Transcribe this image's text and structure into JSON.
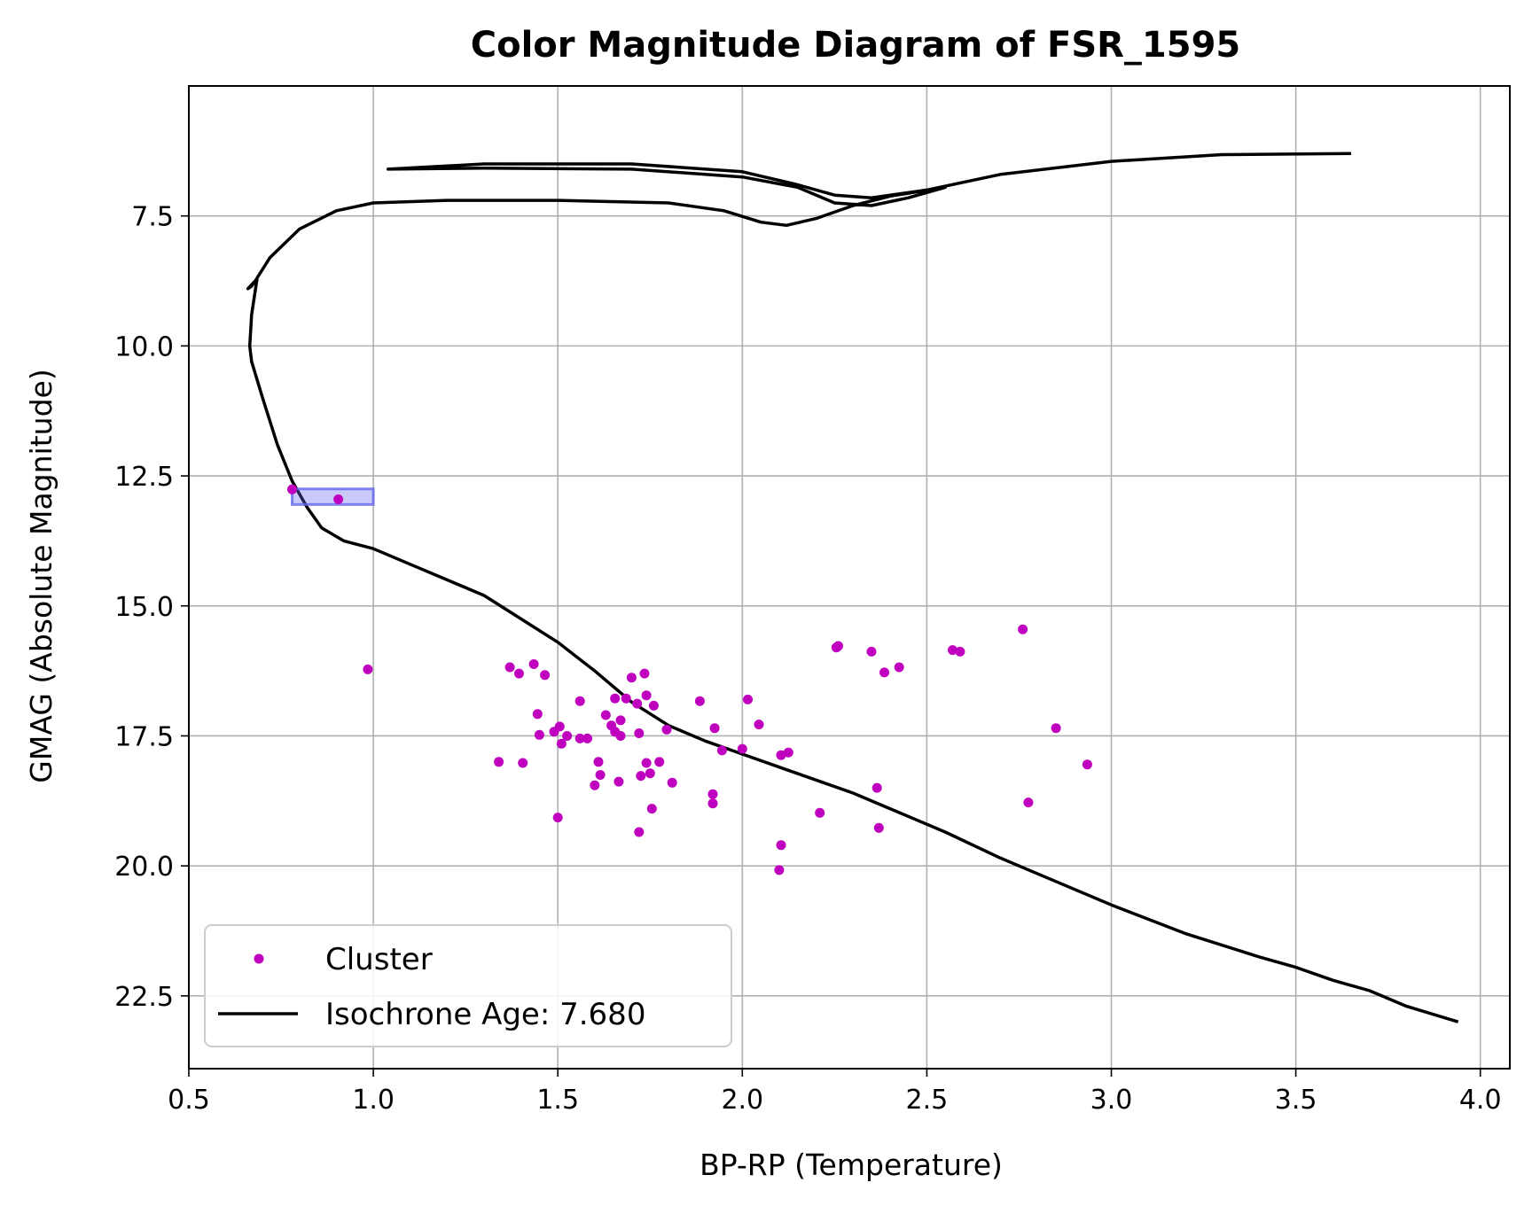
{
  "chart_data": {
    "type": "scatter",
    "title": "Color Magnitude Diagram of FSR_1595",
    "xlabel": "BP-RP (Temperature)",
    "ylabel": "GMAG (Absolute Magnitude)",
    "xlim": [
      0.5,
      4.08
    ],
    "ylim": [
      23.9,
      5.0
    ],
    "y_inverted": true,
    "grid": true,
    "legend_position": "lower-left",
    "x_ticks": [
      "0.5",
      "1.0",
      "1.5",
      "2.0",
      "2.5",
      "3.0",
      "3.5",
      "4.0"
    ],
    "y_ticks": [
      "7.5",
      "10.0",
      "12.5",
      "15.0",
      "17.5",
      "20.0",
      "22.5"
    ],
    "series": [
      {
        "name": "Cluster",
        "kind": "scatter",
        "color": "#bf00bf",
        "points": [
          [
            0.78,
            12.76
          ],
          [
            0.905,
            12.95
          ],
          [
            0.985,
            16.22
          ],
          [
            1.34,
            18.0
          ],
          [
            1.37,
            16.18
          ],
          [
            1.395,
            16.3
          ],
          [
            1.405,
            18.02
          ],
          [
            1.435,
            16.12
          ],
          [
            1.465,
            16.33
          ],
          [
            1.445,
            17.08
          ],
          [
            1.45,
            17.48
          ],
          [
            1.49,
            17.42
          ],
          [
            1.505,
            17.32
          ],
          [
            1.51,
            17.65
          ],
          [
            1.525,
            17.5
          ],
          [
            1.5,
            19.07
          ],
          [
            1.56,
            16.83
          ],
          [
            1.56,
            17.55
          ],
          [
            1.58,
            17.55
          ],
          [
            1.6,
            18.45
          ],
          [
            1.61,
            18.0
          ],
          [
            1.615,
            18.25
          ],
          [
            1.63,
            17.1
          ],
          [
            1.645,
            17.3
          ],
          [
            1.655,
            16.78
          ],
          [
            1.655,
            17.42
          ],
          [
            1.665,
            18.38
          ],
          [
            1.67,
            17.2
          ],
          [
            1.67,
            17.5
          ],
          [
            1.685,
            16.78
          ],
          [
            1.7,
            16.38
          ],
          [
            1.715,
            16.88
          ],
          [
            1.72,
            17.45
          ],
          [
            1.72,
            19.35
          ],
          [
            1.725,
            18.27
          ],
          [
            1.735,
            16.3
          ],
          [
            1.74,
            16.72
          ],
          [
            1.74,
            18.02
          ],
          [
            1.75,
            18.22
          ],
          [
            1.755,
            18.9
          ],
          [
            1.76,
            16.92
          ],
          [
            1.775,
            18.0
          ],
          [
            1.795,
            17.38
          ],
          [
            1.81,
            18.4
          ],
          [
            1.885,
            16.83
          ],
          [
            1.92,
            18.62
          ],
          [
            1.92,
            18.8
          ],
          [
            1.925,
            17.35
          ],
          [
            1.945,
            17.78
          ],
          [
            2.0,
            17.75
          ],
          [
            2.015,
            16.8
          ],
          [
            2.045,
            17.28
          ],
          [
            2.105,
            17.87
          ],
          [
            2.105,
            19.6
          ],
          [
            2.1,
            20.08
          ],
          [
            2.125,
            17.82
          ],
          [
            2.21,
            18.98
          ],
          [
            2.255,
            15.8
          ],
          [
            2.26,
            15.77
          ],
          [
            2.35,
            15.88
          ],
          [
            2.365,
            18.5
          ],
          [
            2.37,
            19.27
          ],
          [
            2.385,
            16.28
          ],
          [
            2.425,
            16.18
          ],
          [
            2.57,
            15.85
          ],
          [
            2.59,
            15.88
          ],
          [
            2.76,
            15.45
          ],
          [
            2.775,
            18.78
          ],
          [
            2.85,
            17.35
          ],
          [
            2.935,
            18.05
          ]
        ]
      },
      {
        "name": "Isochrone Age: 7.680",
        "kind": "line",
        "color": "#000000",
        "points": [
          [
            3.65,
            6.3
          ],
          [
            3.3,
            6.32
          ],
          [
            3.0,
            6.45
          ],
          [
            2.7,
            6.7
          ],
          [
            2.5,
            7.0
          ],
          [
            2.45,
            7.05
          ],
          [
            2.35,
            7.15
          ],
          [
            2.25,
            7.1
          ],
          [
            2.15,
            6.9
          ],
          [
            2.0,
            6.65
          ],
          [
            1.7,
            6.5
          ],
          [
            1.3,
            6.5
          ],
          [
            1.04,
            6.6
          ],
          [
            1.3,
            6.58
          ],
          [
            1.7,
            6.6
          ],
          [
            2.0,
            6.75
          ],
          [
            2.15,
            6.95
          ],
          [
            2.25,
            7.25
          ],
          [
            2.35,
            7.3
          ],
          [
            2.45,
            7.15
          ],
          [
            2.55,
            6.95
          ],
          [
            2.4,
            7.12
          ],
          [
            2.3,
            7.3
          ],
          [
            2.2,
            7.55
          ],
          [
            2.12,
            7.68
          ],
          [
            2.05,
            7.62
          ],
          [
            1.95,
            7.4
          ],
          [
            1.8,
            7.25
          ],
          [
            1.5,
            7.2
          ],
          [
            1.2,
            7.2
          ],
          [
            1.0,
            7.25
          ],
          [
            0.9,
            7.4
          ],
          [
            0.8,
            7.75
          ],
          [
            0.72,
            8.3
          ],
          [
            0.68,
            8.75
          ],
          [
            0.66,
            8.9
          ],
          [
            0.67,
            8.85
          ],
          [
            0.685,
            8.7
          ],
          [
            0.67,
            9.4
          ],
          [
            0.665,
            10.0
          ],
          [
            0.67,
            10.3
          ],
          [
            0.7,
            11.0
          ],
          [
            0.74,
            11.9
          ],
          [
            0.78,
            12.6
          ],
          [
            0.82,
            13.1
          ],
          [
            0.86,
            13.5
          ],
          [
            0.92,
            13.75
          ],
          [
            1.0,
            13.9
          ],
          [
            1.1,
            14.2
          ],
          [
            1.2,
            14.5
          ],
          [
            1.3,
            14.8
          ],
          [
            1.4,
            15.25
          ],
          [
            1.5,
            15.7
          ],
          [
            1.6,
            16.25
          ],
          [
            1.7,
            16.85
          ],
          [
            1.8,
            17.3
          ],
          [
            1.9,
            17.6
          ],
          [
            2.0,
            17.85
          ],
          [
            2.1,
            18.1
          ],
          [
            2.2,
            18.35
          ],
          [
            2.3,
            18.6
          ],
          [
            2.4,
            18.9
          ],
          [
            2.55,
            19.35
          ],
          [
            2.7,
            19.85
          ],
          [
            2.85,
            20.3
          ],
          [
            3.0,
            20.75
          ],
          [
            3.2,
            21.3
          ],
          [
            3.4,
            21.75
          ],
          [
            3.5,
            21.95
          ],
          [
            3.6,
            22.2
          ],
          [
            3.7,
            22.4
          ],
          [
            3.8,
            22.7
          ],
          [
            3.94,
            23.0
          ]
        ]
      }
    ],
    "highlight_box": {
      "color": "#6666ee",
      "x_range": [
        0.78,
        1.0
      ],
      "y_range": [
        12.75,
        13.05
      ]
    }
  }
}
